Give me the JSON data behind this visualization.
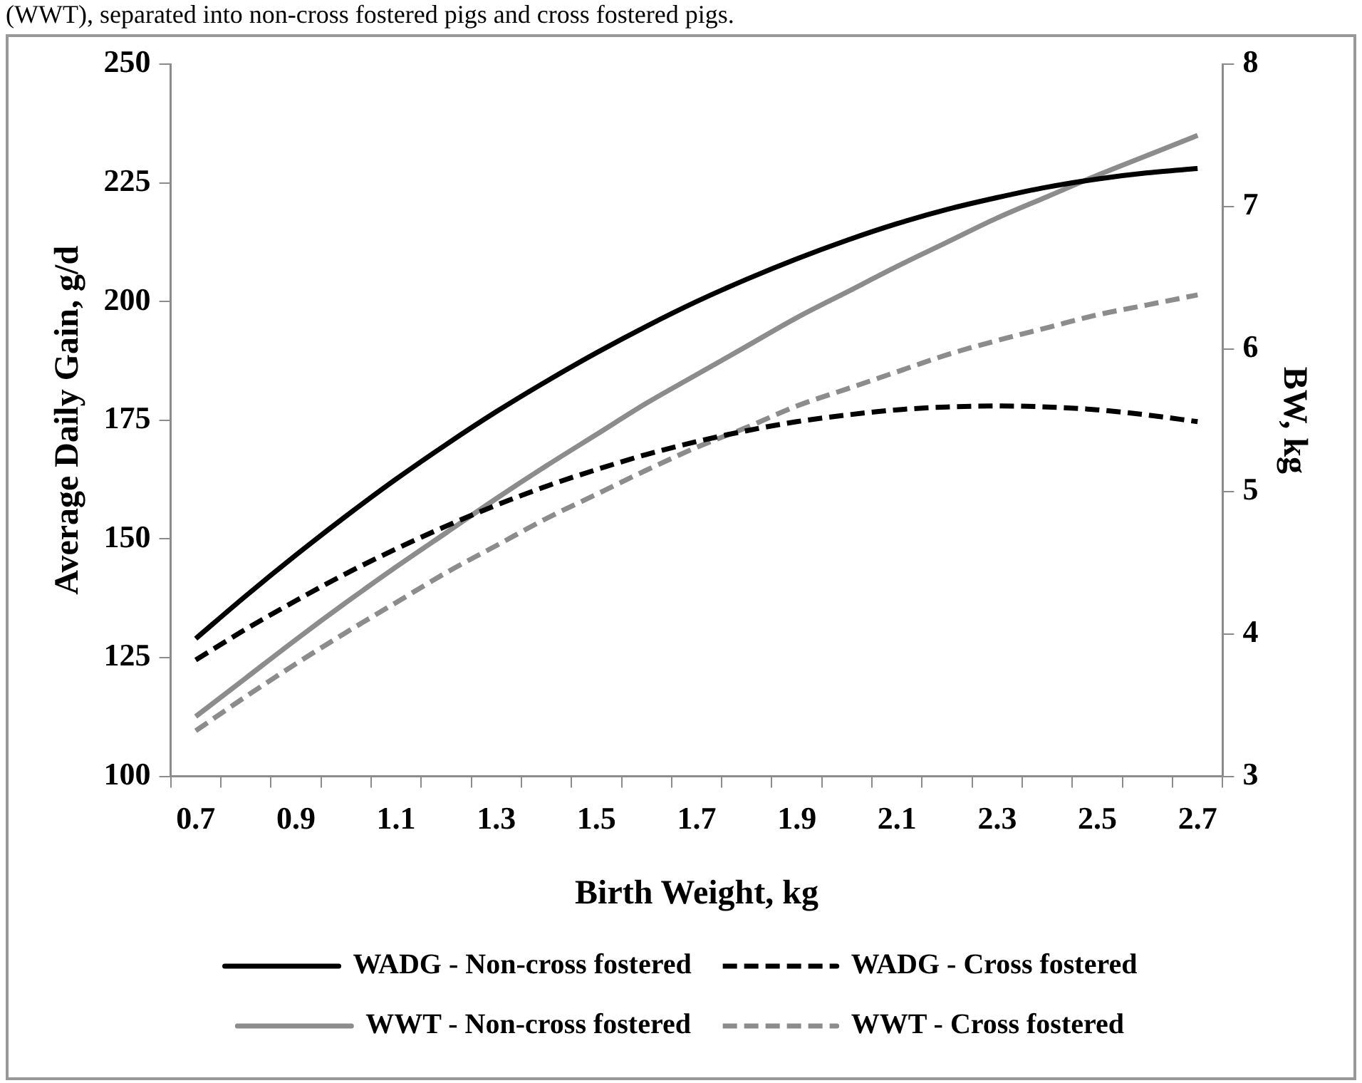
{
  "chart_data": {
    "type": "line",
    "xlabel": "Birth Weight, kg",
    "ylabel": "Average Daily Gain, g/d",
    "y2label": "BW, kg",
    "annotations": [
      "(WWT), separated into non-cross fostered pigs and cross fostered pigs."
    ],
    "categories": [
      "0.7",
      null,
      "0.9",
      null,
      "1.1",
      null,
      "1.3",
      null,
      "1.5",
      null,
      "1.7",
      null,
      "1.9",
      null,
      "2.1",
      null,
      "2.3",
      null,
      "2.5",
      null,
      "2.7"
    ],
    "series": [
      {
        "name": "WADG - Non-cross fostered",
        "color": "#000000",
        "axis": "y",
        "line_style": "solid",
        "values": [
          129,
          138.0,
          146.6,
          154.8,
          162.6,
          169.9,
          176.8,
          183.2,
          189.2,
          194.8,
          200,
          204.7,
          209.0,
          212.9,
          216.4,
          219.4,
          221.9,
          224.1,
          225.8,
          227.1,
          228
        ]
      },
      {
        "name": "WADG - Cross fostered",
        "color": "#000000",
        "axis": "y",
        "line_style": "dashed",
        "values": [
          124.5,
          131.0,
          137.0,
          142.7,
          147.9,
          152.7,
          157.1,
          161.1,
          164.6,
          167.8,
          170.5,
          172.8,
          174.7,
          176.1,
          177.2,
          177.8,
          178,
          177.8,
          177.2,
          176.1,
          174.7
        ]
      },
      {
        "name": "WWT - Non-cross fostered",
        "color": "#8c8c8c",
        "axis": "y2",
        "line_style": "solid",
        "values": [
          3.42,
          3.69,
          3.96,
          4.22,
          4.47,
          4.71,
          4.95,
          5.18,
          5.4,
          5.62,
          5.82,
          6.02,
          6.22,
          6.4,
          6.58,
          6.75,
          6.92,
          7.07,
          7.22,
          7.36,
          7.5
        ]
      },
      {
        "name": "WWT - Cross fostered",
        "color": "#8c8c8c",
        "axis": "y2",
        "line_style": "dashed",
        "values": [
          3.32,
          3.56,
          3.79,
          4.01,
          4.22,
          4.43,
          4.62,
          4.81,
          4.98,
          5.15,
          5.31,
          5.45,
          5.6,
          5.72,
          5.84,
          5.96,
          6.06,
          6.15,
          6.24,
          6.31,
          6.38
        ]
      }
    ],
    "ylim": [
      100,
      250
    ],
    "yticks": [
      100,
      125,
      150,
      175,
      200,
      225,
      250
    ],
    "y2lim": [
      3,
      8
    ],
    "y2ticks": [
      3,
      4,
      5,
      6,
      7,
      8
    ],
    "legend": "bottom",
    "marker": "none"
  }
}
